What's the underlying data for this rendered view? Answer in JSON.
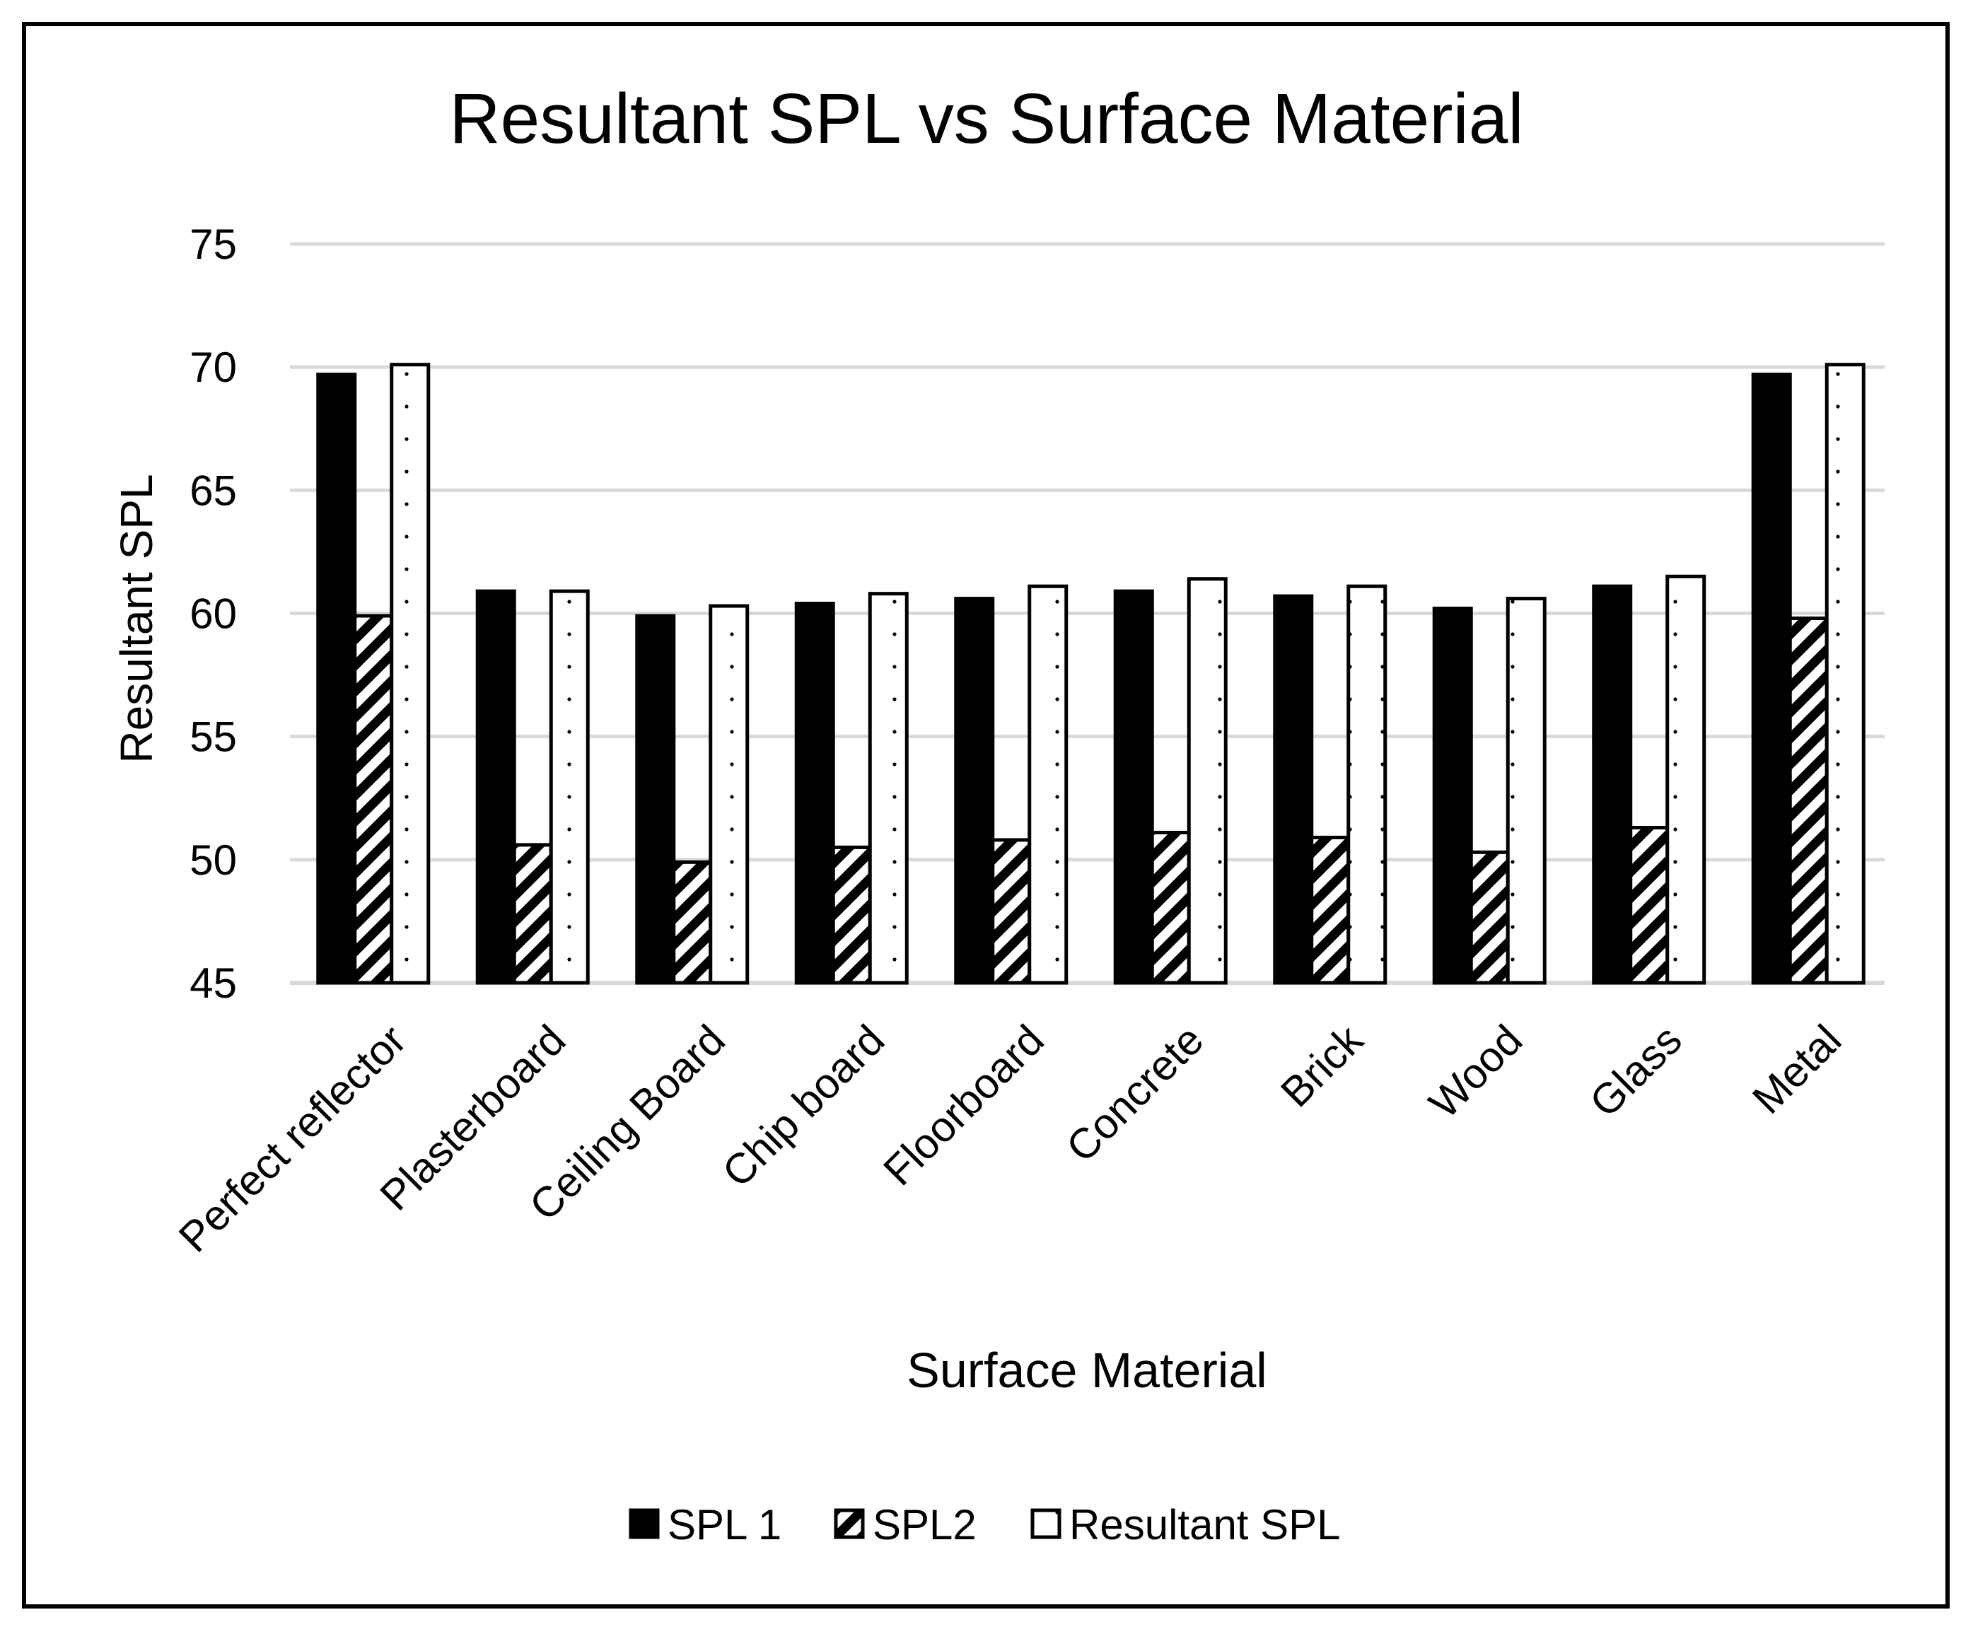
{
  "chart_data": {
    "type": "bar",
    "title": "Resultant SPL vs Surface Material",
    "xlabel": "Surface Material",
    "ylabel": "Resultant SPL",
    "ylim": [
      45,
      75
    ],
    "yticks": [
      45,
      50,
      55,
      60,
      65,
      70,
      75
    ],
    "grid": true,
    "legend_position": "bottom",
    "categories": [
      "Perfect reflector",
      "Plasterboard",
      "Ceiling Board",
      "Chip board",
      "Floorboard",
      "Concrete",
      "Brick",
      "Wood",
      "Glass",
      "Metal"
    ],
    "series": [
      {
        "name": "SPL 1",
        "pattern": "solid",
        "values": [
          69.7,
          60.9,
          59.9,
          60.4,
          60.6,
          60.9,
          60.7,
          60.2,
          61.1,
          69.7
        ]
      },
      {
        "name": "SPL2",
        "pattern": "diagonal-hatch",
        "values": [
          59.9,
          50.6,
          49.9,
          50.5,
          50.8,
          51.1,
          50.9,
          50.3,
          51.3,
          59.8
        ]
      },
      {
        "name": "Resultant SPL",
        "pattern": "dotted",
        "values": [
          70.1,
          60.9,
          60.3,
          60.8,
          61.1,
          61.4,
          61.1,
          60.6,
          61.5,
          70.1
        ]
      }
    ],
    "colors": {
      "bar_fill": "#000000",
      "bar_stroke": "#000000",
      "grid": "#d9d9d9",
      "background": "#ffffff"
    }
  }
}
